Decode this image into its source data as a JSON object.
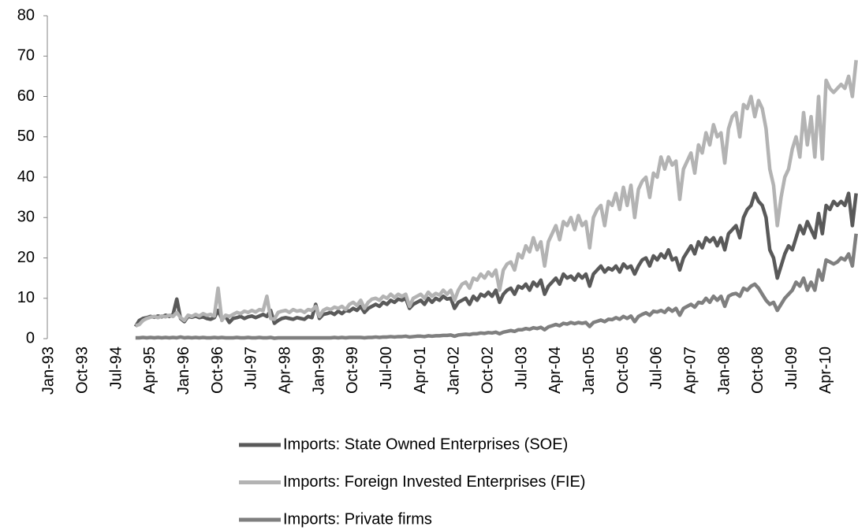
{
  "chart_data": {
    "type": "line",
    "categories": [
      "Jan-93",
      null,
      null,
      null,
      null,
      null,
      null,
      null,
      null,
      "Oct-93",
      null,
      null,
      null,
      null,
      null,
      null,
      null,
      null,
      "Jul-94",
      null,
      null,
      null,
      null,
      null,
      null,
      null,
      null,
      "Apr-95",
      null,
      null,
      null,
      null,
      null,
      null,
      null,
      null,
      "Jan-96",
      null,
      null,
      null,
      null,
      null,
      null,
      null,
      null,
      "Oct-96",
      null,
      null,
      null,
      null,
      null,
      null,
      null,
      null,
      "Jul-97",
      null,
      null,
      null,
      null,
      null,
      null,
      null,
      null,
      "Apr-98",
      null,
      null,
      null,
      null,
      null,
      null,
      null,
      null,
      "Jan-99",
      null,
      null,
      null,
      null,
      null,
      null,
      null,
      null,
      "Oct-99",
      null,
      null,
      null,
      null,
      null,
      null,
      null,
      null,
      "Jul-00",
      null,
      null,
      null,
      null,
      null,
      null,
      null,
      null,
      "Apr-01",
      null,
      null,
      null,
      null,
      null,
      null,
      null,
      null,
      "Jan-02",
      null,
      null,
      null,
      null,
      null,
      null,
      null,
      null,
      "Oct-02",
      null,
      null,
      null,
      null,
      null,
      null,
      null,
      null,
      "Jul-03",
      null,
      null,
      null,
      null,
      null,
      null,
      null,
      null,
      "Apr-04",
      null,
      null,
      null,
      null,
      null,
      null,
      null,
      null,
      "Jan-05",
      null,
      null,
      null,
      null,
      null,
      null,
      null,
      null,
      "Oct-05",
      null,
      null,
      null,
      null,
      null,
      null,
      null,
      null,
      "Jul-06",
      null,
      null,
      null,
      null,
      null,
      null,
      null,
      null,
      "Apr-07",
      null,
      null,
      null,
      null,
      null,
      null,
      null,
      null,
      "Jan-08",
      null,
      null,
      null,
      null,
      null,
      null,
      null,
      null,
      "Oct-08",
      null,
      null,
      null,
      null,
      null,
      null,
      null,
      null,
      "Jul-09",
      null,
      null,
      null,
      null,
      null,
      null,
      null,
      null,
      "Apr-10",
      null,
      null,
      null,
      null,
      null,
      null,
      null,
      null
    ],
    "series": [
      {
        "name": "Imports: State Owned Enterprises (SOE)",
        "color": "#595959",
        "values": [
          null,
          null,
          null,
          null,
          null,
          null,
          null,
          null,
          null,
          null,
          null,
          null,
          null,
          null,
          null,
          null,
          null,
          null,
          null,
          null,
          null,
          null,
          null,
          3,
          4.5,
          5,
          5.2,
          5.5,
          5.3,
          5.6,
          5.4,
          5.8,
          5.5,
          6,
          9.8,
          5,
          4.2,
          5.5,
          5.3,
          5.6,
          5.2,
          5.4,
          5,
          4.8,
          5.2,
          7,
          4.9,
          5.5,
          4,
          5,
          5.2,
          5.5,
          5,
          5.4,
          5.6,
          5.2,
          5.6,
          6,
          5.5,
          7,
          3.8,
          4.5,
          5,
          5.2,
          5,
          4.8,
          5.2,
          5,
          4.8,
          5.5,
          5.2,
          8.5,
          5,
          6,
          6.2,
          6.5,
          6,
          6.8,
          6.2,
          7,
          6.8,
          7.5,
          7,
          8,
          6.5,
          7.5,
          8,
          8.5,
          8,
          9,
          8.5,
          9.5,
          9,
          9.8,
          9.5,
          10,
          7.5,
          8.5,
          9,
          9.5,
          8.5,
          10,
          9,
          10,
          9.5,
          10.5,
          9.8,
          10,
          7.5,
          9,
          9.5,
          10,
          8.5,
          10.5,
          9.5,
          11,
          10.5,
          11.5,
          10.5,
          12,
          9,
          11,
          12,
          12.5,
          11,
          13,
          12.5,
          13.5,
          12,
          14,
          13,
          14.5,
          11,
          13,
          14,
          15,
          13.5,
          16,
          15,
          15.5,
          14.5,
          16,
          15,
          16,
          13,
          16,
          17,
          18,
          16.5,
          17.5,
          17,
          18,
          16.5,
          18.5,
          17.5,
          18,
          16,
          18,
          19.5,
          20,
          18,
          20.5,
          19.5,
          21,
          20,
          22,
          19.5,
          20,
          17,
          20,
          21.5,
          23,
          21,
          24,
          22.5,
          25,
          24,
          25,
          23,
          25,
          22,
          26,
          27,
          28,
          25,
          30,
          32,
          33,
          36,
          34,
          33,
          30,
          22,
          20,
          15,
          18,
          21,
          23,
          22,
          25,
          28,
          26,
          29,
          27,
          25,
          31,
          26,
          33,
          32,
          34,
          33,
          34,
          33,
          36,
          28,
          36
        ]
      },
      {
        "name": "Imports: Foreign Invested Enterprises (FIE)",
        "color": "#b3b3b3",
        "values": [
          null,
          null,
          null,
          null,
          null,
          null,
          null,
          null,
          null,
          null,
          null,
          null,
          null,
          null,
          null,
          null,
          null,
          null,
          null,
          null,
          null,
          null,
          null,
          3.2,
          3.5,
          4.5,
          5,
          5.3,
          5.5,
          5.2,
          5.6,
          5.4,
          5.8,
          5.5,
          6.5,
          5.2,
          4.5,
          5.8,
          5.5,
          6,
          5.6,
          6.2,
          5.8,
          6,
          5.6,
          12.5,
          4.5,
          5.8,
          5.5,
          6,
          6.5,
          6.2,
          6.8,
          6.5,
          7,
          6.6,
          7.2,
          7,
          10.5,
          5,
          4.8,
          6.5,
          6.8,
          7,
          6.5,
          7.2,
          6.8,
          7,
          6.5,
          7.2,
          7,
          8,
          5.5,
          7,
          7.5,
          7.2,
          7.8,
          7.5,
          8,
          7.2,
          8.5,
          9,
          8.2,
          9.5,
          7.5,
          9,
          9.8,
          10,
          9.5,
          10.5,
          10,
          11,
          10.2,
          11,
          10.5,
          11,
          8,
          10,
          10.5,
          11,
          10,
          11.5,
          10.5,
          11.2,
          10.8,
          12,
          11,
          12,
          9.5,
          12,
          13.5,
          14,
          12.5,
          15,
          14.5,
          16,
          15,
          16.5,
          15.5,
          17,
          12,
          17,
          18.5,
          19,
          17,
          21,
          20,
          23,
          21.5,
          25,
          22,
          24,
          18,
          24,
          26,
          28,
          24.5,
          29,
          28,
          30,
          27,
          30.5,
          28,
          29,
          22.5,
          30,
          32,
          33,
          28,
          34,
          33,
          36,
          32,
          37.5,
          33,
          38,
          30,
          37,
          39,
          40,
          35,
          41,
          40,
          45,
          42,
          45,
          43,
          44,
          34.5,
          42,
          44,
          46,
          41,
          48,
          46,
          51,
          48,
          53,
          50,
          51,
          43.5,
          52,
          55,
          56,
          50,
          58,
          57,
          60,
          55,
          59,
          57,
          52,
          42,
          38,
          28,
          35,
          40,
          42,
          47,
          50,
          45,
          56,
          48,
          55,
          45,
          60,
          44.5,
          64,
          62,
          61,
          62,
          63,
          62,
          65,
          60,
          69
        ]
      },
      {
        "name": "Imports: Private firms",
        "color": "#7f7f7f",
        "values": [
          null,
          null,
          null,
          null,
          null,
          null,
          null,
          null,
          null,
          null,
          null,
          null,
          null,
          null,
          null,
          null,
          null,
          null,
          null,
          null,
          null,
          null,
          null,
          0.2,
          0.2,
          0.3,
          0.2,
          0.3,
          0.2,
          0.3,
          0.2,
          0.3,
          0.2,
          0.3,
          0.2,
          0.4,
          0.2,
          0.3,
          0.2,
          0.3,
          0.2,
          0.3,
          0.2,
          0.2,
          0.3,
          0.2,
          0.3,
          0.2,
          0.2,
          0.2,
          0.3,
          0.2,
          0.2,
          0.3,
          0.2,
          0.2,
          0.3,
          0.2,
          0.2,
          0.3,
          0.1,
          0.2,
          0.2,
          0.2,
          0.2,
          0.2,
          0.2,
          0.2,
          0.2,
          0.2,
          0.2,
          0.2,
          0.2,
          0.2,
          0.2,
          0.2,
          0.3,
          0.2,
          0.3,
          0.2,
          0.3,
          0.3,
          0.3,
          0.3,
          0.2,
          0.3,
          0.3,
          0.4,
          0.3,
          0.4,
          0.4,
          0.5,
          0.4,
          0.5,
          0.5,
          0.6,
          0.4,
          0.5,
          0.6,
          0.6,
          0.5,
          0.7,
          0.6,
          0.7,
          0.7,
          0.8,
          0.8,
          0.9,
          0.6,
          0.9,
          1,
          1.1,
          1,
          1.2,
          1.2,
          1.4,
          1.3,
          1.5,
          1.4,
          1.6,
          1.2,
          1.6,
          1.8,
          2,
          1.8,
          2.2,
          2.2,
          2.5,
          2.3,
          2.7,
          2.5,
          2.8,
          2.2,
          2.9,
          3.2,
          3.5,
          3.2,
          3.8,
          3.6,
          4,
          3.7,
          4,
          3.8,
          4,
          3,
          4,
          4.3,
          4.6,
          4.2,
          4.8,
          4.7,
          5.2,
          4.8,
          5.5,
          5,
          5.6,
          4.2,
          5.5,
          6,
          6.4,
          5.8,
          6.8,
          6.6,
          7,
          6.5,
          7.5,
          6.8,
          7.5,
          5.8,
          7.5,
          8,
          8.5,
          7.8,
          9,
          8.8,
          10,
          9,
          10.5,
          9.5,
          10.5,
          8,
          10.5,
          11,
          11.2,
          10.5,
          12.5,
          12,
          13,
          13.5,
          12.5,
          11,
          9.5,
          8.5,
          9,
          7,
          8.5,
          10,
          11,
          12,
          14,
          13,
          15,
          12,
          14,
          12,
          17,
          14.5,
          19.5,
          19,
          18.5,
          19,
          20,
          19.5,
          21,
          18,
          26
        ]
      }
    ],
    "ylim": [
      0,
      80
    ],
    "yticks": [
      0,
      10,
      20,
      30,
      40,
      50,
      60,
      70,
      80
    ],
    "legend": "bottom"
  }
}
